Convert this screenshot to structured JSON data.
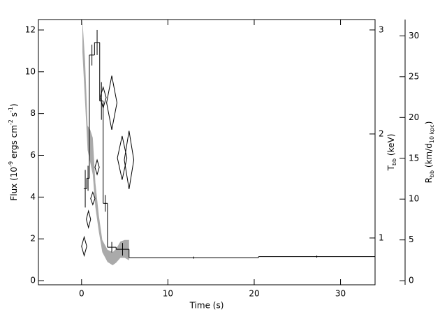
{
  "chart_data": {
    "type": "line",
    "xlabel": "Time (s)",
    "ylabel": [
      {
        "text": "Flux (10"
      },
      {
        "text": "-9",
        "sup": true
      },
      {
        "text": " ergs cm"
      },
      {
        "text": "-2",
        "sup": true
      },
      {
        "text": " s"
      },
      {
        "text": "-1",
        "sup": true
      },
      {
        "text": ")"
      }
    ],
    "y2label": [
      {
        "text": "T"
      },
      {
        "text": "bb",
        "sub": true
      },
      {
        "text": " (keV)"
      }
    ],
    "y3label": [
      {
        "text": "R"
      },
      {
        "text": "bb",
        "sub": true
      },
      {
        "text": " (km/d"
      },
      {
        "text": "10 kpc",
        "sub": true
      },
      {
        "text": ")"
      }
    ],
    "xlim": [
      -5,
      34
    ],
    "xticks": [
      0,
      10,
      20,
      30
    ],
    "ylim": [
      -0.2,
      12.5
    ],
    "yticks": [
      0,
      2,
      4,
      6,
      8,
      10,
      12
    ],
    "y2lim": [
      0.55,
      3.1
    ],
    "y2ticks": [
      1,
      2,
      3
    ],
    "y3lim": [
      -0.5,
      32
    ],
    "y3ticks": [
      0,
      5,
      10,
      15,
      20,
      25,
      30
    ],
    "series": [
      {
        "name": "Flux",
        "type": "step",
        "color": "#000000",
        "bins": [
          0.25,
          0.6,
          0.9,
          1.5,
          2.1,
          2.5,
          3.0,
          4.0,
          5.5,
          20.5,
          34
        ],
        "values": [
          4.4,
          4.9,
          10.8,
          11.4,
          8.6,
          3.7,
          1.6,
          1.5,
          1.1,
          1.15
        ],
        "errors": [
          0.9,
          0.6,
          0.5,
          0.6,
          0.9,
          0.4,
          0.25,
          0.3,
          0.05,
          0.05
        ]
      },
      {
        "name": "Tbb",
        "type": "diamond",
        "axis": "y2",
        "color": "#000000",
        "x": [
          0.3,
          0.8,
          1.3,
          1.8,
          2.5,
          3.5,
          4.7,
          5.5
        ],
        "xerr": [
          0.3,
          0.25,
          0.25,
          0.25,
          0.35,
          0.6,
          0.55,
          0.55
        ],
        "values": [
          0.92,
          1.18,
          1.38,
          1.68,
          2.35,
          2.3,
          1.77,
          1.75
        ],
        "errors": [
          0.09,
          0.08,
          0.06,
          0.07,
          0.1,
          0.26,
          0.21,
          0.28
        ]
      },
      {
        "name": "Rbb",
        "type": "band",
        "axis": "y3",
        "color": "#aaaaaa",
        "x": [
          0.1,
          0.4,
          0.7,
          1.0,
          1.3,
          1.6,
          2.0,
          2.4,
          3.0,
          3.6,
          4.0,
          4.5,
          5.0,
          5.5
        ],
        "lower": [
          28,
          22,
          16,
          14.5,
          13,
          9,
          6,
          3.5,
          2.3,
          1.9,
          2.2,
          2.8,
          2.8,
          2.5
        ],
        "upper": [
          32,
          27,
          19,
          18.5,
          17.5,
          12,
          8,
          5,
          3.8,
          3.5,
          3.9,
          4.8,
          5.0,
          5.0
        ]
      }
    ]
  }
}
